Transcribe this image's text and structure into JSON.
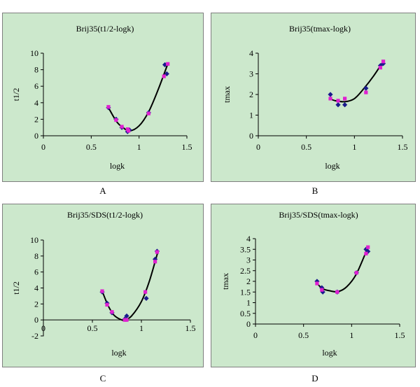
{
  "figure": {
    "panel_labels": [
      "A",
      "B",
      "C",
      "D"
    ]
  },
  "colors": {
    "panel_bg": "#cce8cc",
    "series_diamond": "#1a1a8c",
    "series_square": "#e020d0",
    "curve": "#000000"
  },
  "chart_data": [
    {
      "type": "scatter",
      "title": "Brij35(t1/2-logk)",
      "xlabel": "logk",
      "ylabel": "t1/2",
      "xlim": [
        0,
        1.5
      ],
      "ylim": [
        0,
        10
      ],
      "xticks": [
        "0",
        "0.5",
        "1",
        "1.5"
      ],
      "yticks": [
        "0",
        "2",
        "4",
        "6",
        "8",
        "10"
      ],
      "grid": false,
      "legend": "none",
      "series": [
        {
          "marker": "diamond",
          "x": [
            0.68,
            0.76,
            0.82,
            0.88,
            0.9,
            1.1,
            1.27,
            1.29
          ],
          "y": [
            3.4,
            2.0,
            1.0,
            0.5,
            0.7,
            2.8,
            8.6,
            7.5
          ]
        },
        {
          "marker": "square",
          "x": [
            0.68,
            0.76,
            0.82,
            0.88,
            0.89,
            1.1,
            1.26,
            1.3
          ],
          "y": [
            3.5,
            1.9,
            1.1,
            0.8,
            0.6,
            2.7,
            7.2,
            8.7
          ]
        }
      ],
      "fit_curve": {
        "x": [
          0.68,
          0.76,
          0.82,
          0.9,
          1.0,
          1.1,
          1.2,
          1.3
        ],
        "y": [
          3.4,
          1.8,
          1.1,
          0.6,
          1.2,
          2.9,
          5.6,
          8.7
        ]
      }
    },
    {
      "type": "scatter",
      "title": "Brij35(tmax-logk)",
      "xlabel": "logk",
      "ylabel": "tmax",
      "xlim": [
        0,
        1.5
      ],
      "ylim": [
        0,
        4
      ],
      "xticks": [
        "0",
        "0.5",
        "1",
        "1.5"
      ],
      "yticks": [
        "0",
        "1",
        "2",
        "3",
        "4"
      ],
      "grid": false,
      "legend": "none",
      "series": [
        {
          "marker": "diamond",
          "x": [
            0.75,
            0.83,
            0.9,
            1.12,
            1.27,
            1.3
          ],
          "y": [
            2.0,
            1.5,
            1.5,
            2.3,
            3.4,
            3.5
          ]
        },
        {
          "marker": "square",
          "x": [
            0.75,
            0.83,
            0.9,
            1.12,
            1.27,
            1.3
          ],
          "y": [
            1.8,
            1.7,
            1.8,
            2.1,
            3.3,
            3.6
          ]
        }
      ],
      "fit_curve": {
        "x": [
          0.74,
          0.8,
          0.9,
          1.0,
          1.1,
          1.2,
          1.3
        ],
        "y": [
          1.8,
          1.7,
          1.65,
          1.8,
          2.3,
          2.9,
          3.6
        ]
      }
    },
    {
      "type": "scatter",
      "title": "Brij35/SDS(t1/2-logk)",
      "xlabel": "logk",
      "ylabel": "t1/2",
      "xlim": [
        0,
        1.5
      ],
      "ylim": [
        -2,
        10
      ],
      "xticks": [
        "0",
        "0.5",
        "1",
        "1.5"
      ],
      "yticks": [
        "-2",
        "0",
        "2",
        "4",
        "6",
        "8",
        "10"
      ],
      "grid": false,
      "legend": "none",
      "series": [
        {
          "marker": "diamond",
          "x": [
            0.6,
            0.65,
            0.7,
            0.83,
            0.85,
            1.05,
            1.14,
            1.16
          ],
          "y": [
            3.5,
            2.1,
            0.9,
            0.1,
            0.5,
            2.7,
            7.6,
            8.6
          ]
        },
        {
          "marker": "square",
          "x": [
            0.6,
            0.65,
            0.7,
            0.83,
            0.85,
            1.04,
            1.14,
            1.16
          ],
          "y": [
            3.6,
            1.9,
            1.0,
            0.0,
            0.0,
            3.5,
            7.3,
            8.5
          ]
        }
      ],
      "fit_curve": {
        "x": [
          0.6,
          0.66,
          0.72,
          0.8,
          0.84,
          0.9,
          1.0,
          1.08,
          1.17
        ],
        "y": [
          3.6,
          1.8,
          0.6,
          0.0,
          0.05,
          0.5,
          2.3,
          4.8,
          8.6
        ]
      }
    },
    {
      "type": "scatter",
      "title": "Brij35/SDS(tmax-logk)",
      "xlabel": "logk",
      "ylabel": "tmax",
      "xlim": [
        0,
        1.5
      ],
      "ylim": [
        0,
        4
      ],
      "xticks": [
        "0",
        "0.5",
        "1",
        "1.5"
      ],
      "yticks": [
        "0",
        "0.5",
        "1",
        "1.5",
        "2",
        "2.5",
        "3",
        "3.5",
        "4"
      ],
      "grid": false,
      "legend": "none",
      "series": [
        {
          "marker": "diamond",
          "x": [
            0.64,
            0.69,
            0.7,
            0.85,
            1.05,
            1.15,
            1.17
          ],
          "y": [
            2.0,
            1.7,
            1.5,
            1.5,
            2.4,
            3.5,
            3.4
          ]
        },
        {
          "marker": "square",
          "x": [
            0.64,
            0.69,
            0.85,
            1.05,
            1.15,
            1.17
          ],
          "y": [
            1.9,
            1.6,
            1.5,
            2.4,
            3.3,
            3.6
          ]
        }
      ],
      "fit_curve": {
        "x": [
          0.64,
          0.7,
          0.78,
          0.86,
          0.95,
          1.05,
          1.17
        ],
        "y": [
          1.9,
          1.65,
          1.55,
          1.52,
          1.75,
          2.35,
          3.6
        ]
      }
    }
  ]
}
